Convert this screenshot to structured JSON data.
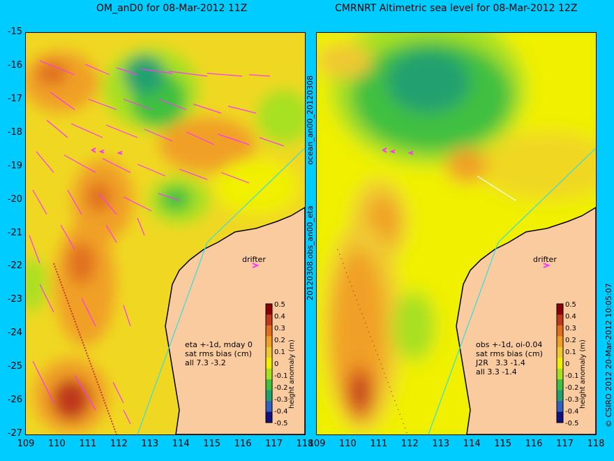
{
  "left_panel": {
    "title": "OM_anD0 for 08-Mar-2012 11Z",
    "note_lines": [
      "eta +-1d, mday 0",
      "sat rms bias (cm)",
      "all 7.3 -3.2"
    ],
    "drifter_label": "drifter"
  },
  "right_panel": {
    "title": "CMRNRT Altimetric sea level  for 08-Mar-2012 12Z",
    "note_lines": [
      "obs +-1d, oi-0.04",
      "sat rms bias (cm)",
      "J2R   3.3 -1.4",
      "all 3.3 -1.4"
    ],
    "drifter_label": "drifter"
  },
  "side_labels": {
    "left_gutter_top": "ocean_an00_20120308",
    "left_gutter_bottom": "20120308.obs_an00_eta",
    "right_edge": "© CSIRO 2012   20-Mar-2012 10:05:07"
  },
  "axes": {
    "lat_ticks": [
      "-15",
      "-16",
      "-17",
      "-18",
      "-19",
      "-20",
      "-21",
      "-22",
      "-23",
      "-24",
      "-25",
      "-26",
      "-27"
    ],
    "lon_ticks": [
      "109",
      "110",
      "111",
      "112",
      "113",
      "114",
      "115",
      "116",
      "117",
      "118"
    ]
  },
  "colorbar": {
    "label": "height anomaly (m)",
    "ticks": [
      "0.5",
      "0.4",
      "0.3",
      "0.2",
      "0.1",
      "0",
      "-0.1",
      "-0.2",
      "-0.3",
      "-0.4",
      "-0.5"
    ],
    "colors": [
      "#8b0000",
      "#c0391b",
      "#e07020",
      "#f0a028",
      "#f0c830",
      "#f0f000",
      "#a8e020",
      "#40c040",
      "#20a070",
      "#3060c0",
      "#101080"
    ]
  },
  "colors": {
    "background": "#00ccff",
    "land": "#fbcba0",
    "arrow": "#ff33ff",
    "coast_line": "#33dddd"
  }
}
